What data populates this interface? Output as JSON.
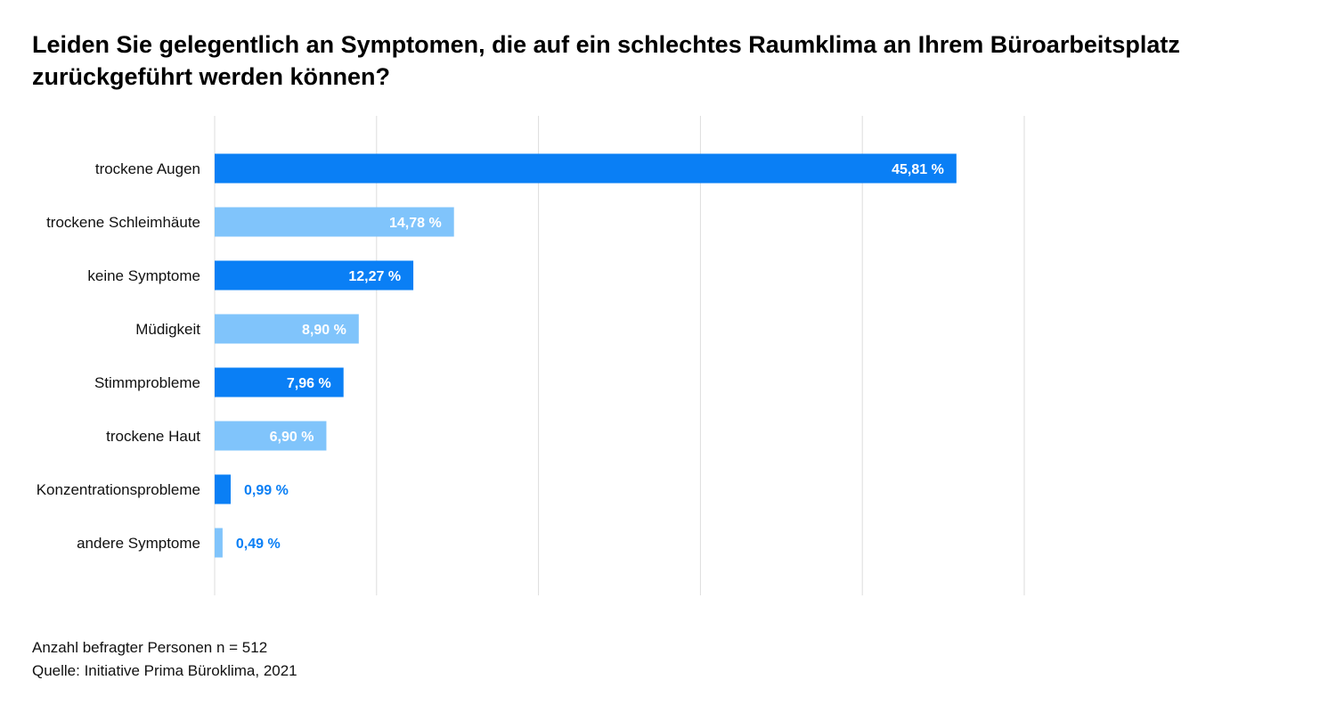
{
  "chart_data": {
    "type": "bar",
    "orientation": "horizontal",
    "title": "Leiden Sie gelegentlich an Symptomen, die auf ein schlechtes Raumklima an Ihrem Büroarbeitsplatz zurückgeführt werden können?",
    "xlabel": "",
    "ylabel": "",
    "xlim": [
      0,
      50
    ],
    "grid": true,
    "categories": [
      "trockene Augen",
      "trockene Schleimhäute",
      "keine Symptome",
      "Müdigkeit",
      "Stimmprobleme",
      "trockene Haut",
      "Konzentrationsprobleme",
      "andere Symptome"
    ],
    "values": [
      45.81,
      14.78,
      12.27,
      8.9,
      7.96,
      6.9,
      0.99,
      0.49
    ],
    "data_labels": [
      "45,81 %",
      "14,78 %",
      "12,27 %",
      "8,90 %",
      "7,96 %",
      "6,90 %",
      "0,99 %",
      "0,49 %"
    ],
    "colors": {
      "dark_blue": "#0a7ff5",
      "light_blue": "#80c4fb",
      "label_outside": "#0a7ff5",
      "label_inside": "#ffffff",
      "grid": "#dddddd"
    },
    "bar_color_keys": [
      "dark_blue",
      "light_blue",
      "dark_blue",
      "light_blue",
      "dark_blue",
      "light_blue",
      "dark_blue",
      "light_blue"
    ]
  },
  "footer": {
    "sample": "Anzahl befragter Personen n = 512",
    "source": "Quelle: Initiative Prima Büroklima, 2021"
  }
}
